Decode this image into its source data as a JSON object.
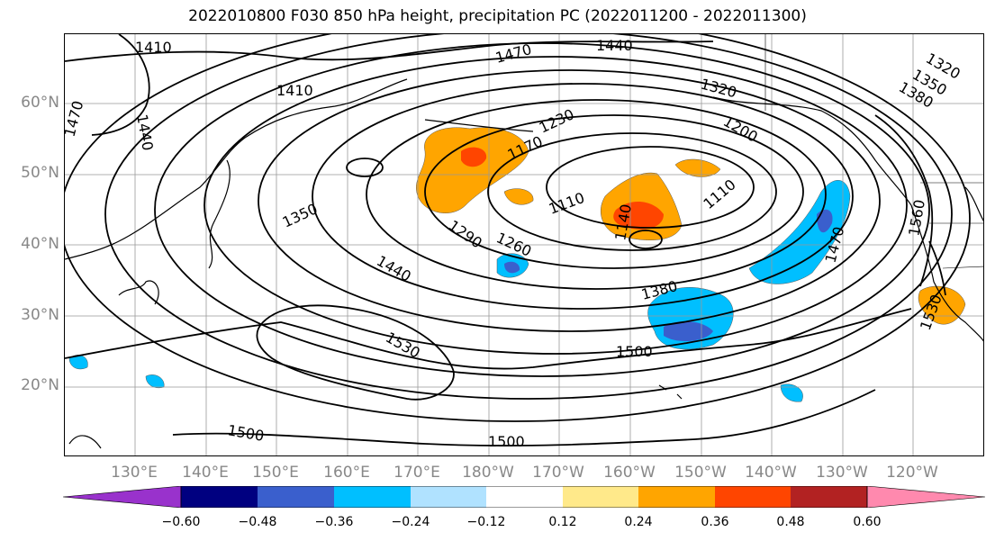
{
  "title": "2022010800 F030 850 hPa height, precipitation PC (2022011200 - 2022011300)",
  "lat_labels": [
    "60°N",
    "50°N",
    "40°N",
    "30°N",
    "20°N"
  ],
  "lon_labels": [
    "130°E",
    "140°E",
    "150°E",
    "160°E",
    "170°E",
    "180°W",
    "170°W",
    "160°W",
    "150°W",
    "140°W",
    "130°W",
    "120°W"
  ],
  "contour_labels": [
    "1410",
    "1410",
    "1440",
    "1470",
    "1470",
    "1440",
    "1320",
    "1320",
    "1350",
    "1380",
    "1230",
    "1200",
    "1170",
    "1110",
    "1110",
    "1140",
    "1350",
    "1290",
    "1260",
    "1440",
    "1380",
    "1530",
    "1500",
    "1500",
    "1500",
    "1470",
    "1560",
    "1530"
  ],
  "colorbar": {
    "ticks": [
      "−0.60",
      "−0.48",
      "−0.36",
      "−0.24",
      "−0.12",
      "0.12",
      "0.24",
      "0.36",
      "0.48",
      "0.60"
    ],
    "colors": [
      "#9932cc",
      "#000080",
      "#3a5fcd",
      "#00bfff",
      "#b0e2ff",
      "#ffffff",
      "#ffe98a",
      "#ffa500",
      "#ff4500",
      "#b22222",
      "#ff89ae"
    ]
  }
}
